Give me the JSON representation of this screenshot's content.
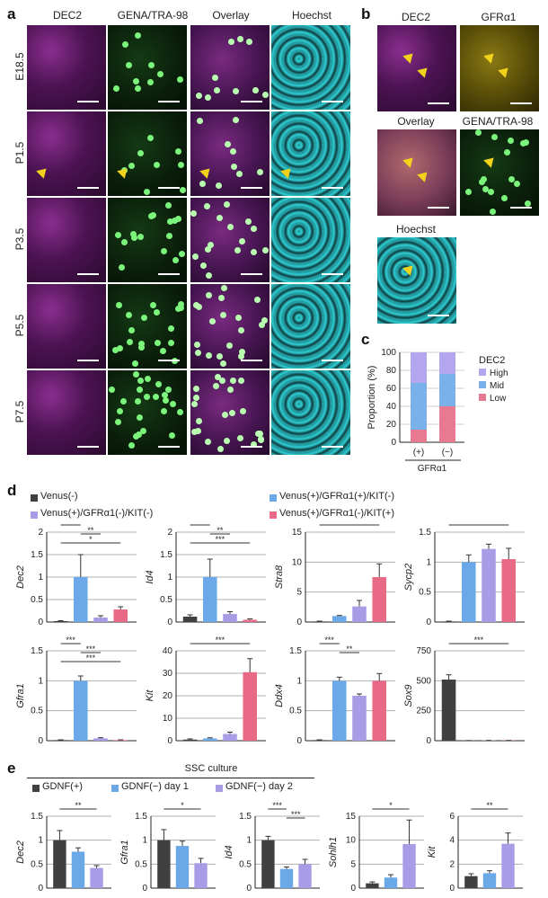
{
  "panel_labels": {
    "a": "a",
    "b": "b",
    "c": "c",
    "d": "d",
    "e": "e"
  },
  "panel_a": {
    "columns": [
      "DEC2",
      "GENA/TRA-98",
      "Overlay",
      "Hoechst"
    ],
    "rows": [
      "E18.5",
      "P1.5",
      "P3.5",
      "P5.5",
      "P7.5"
    ]
  },
  "panel_b": {
    "titles": [
      "DEC2",
      "GFRα1",
      "Overlay",
      "GENA/TRA-98",
      "Hoechst"
    ]
  },
  "colors": {
    "black": "#404040",
    "blue": "#6aa8e8",
    "lavender": "#a99ce6",
    "pink": "#e86a86",
    "high": "#b3a6ef",
    "mid": "#7ab1ea",
    "low": "#e77a91"
  },
  "chart_data": [
    {
      "id": "c",
      "type": "bar",
      "stacked": true,
      "ylabel": "Proportion (%)",
      "yticks": [
        "0",
        "20",
        "40",
        "60",
        "80",
        "100"
      ],
      "ylim": [
        0,
        100
      ],
      "categories": [
        "(+)",
        "(−)"
      ],
      "xgroup": "GFRα1",
      "legend_title": "DEC2",
      "series": [
        {
          "name": "Low",
          "values": [
            14,
            40
          ]
        },
        {
          "name": "Mid",
          "values": [
            52,
            36
          ]
        },
        {
          "name": "High",
          "values": [
            34,
            24
          ]
        }
      ]
    },
    {
      "id": "d",
      "type": "bar",
      "legend": [
        "Venus(-)",
        "Venus(+)/GFRα1(+)/KIT(-)",
        "Venus(+)/GFRα1(-)/KIT(-)",
        "Venus(+)/GFRα1(-)/KIT(+)"
      ],
      "subplots": [
        {
          "gene": "Dec2",
          "yticks": [
            "0",
            "0.5",
            "1",
            "1.5",
            "2"
          ],
          "ylim": [
            0,
            2
          ],
          "values": [
            0.02,
            1.0,
            0.1,
            0.28
          ],
          "errors": [
            0.01,
            0.5,
            0.04,
            0.06
          ],
          "sig": [
            "**",
            "**",
            "*"
          ]
        },
        {
          "gene": "Id4",
          "yticks": [
            "0",
            "0.5",
            "1",
            "1.5",
            "2"
          ],
          "ylim": [
            0,
            2
          ],
          "values": [
            0.12,
            1.0,
            0.18,
            0.05
          ],
          "errors": [
            0.04,
            0.4,
            0.05,
            0.02
          ],
          "sig": [
            "**",
            "**",
            "***"
          ]
        },
        {
          "gene": "Stra8",
          "yticks": [
            "0",
            "5",
            "10",
            "15"
          ],
          "ylim": [
            0,
            15
          ],
          "values": [
            0.1,
            1.0,
            2.6,
            7.5
          ],
          "errors": [
            0.05,
            0.1,
            1.0,
            2.2
          ],
          "sig": [
            "***"
          ]
        },
        {
          "gene": "Sycp2",
          "yticks": [
            "0",
            "0.5",
            "1",
            "1.5"
          ],
          "ylim": [
            0,
            1.5
          ],
          "values": [
            0.01,
            1.0,
            1.22,
            1.05
          ],
          "errors": [
            0.005,
            0.12,
            0.08,
            0.18
          ],
          "sig": [
            "***"
          ]
        },
        {
          "gene": "Gfra1",
          "yticks": [
            "0",
            "0.5",
            "1",
            "1.5"
          ],
          "ylim": [
            0,
            1.5
          ],
          "values": [
            0.01,
            1.0,
            0.04,
            0.01
          ],
          "errors": [
            0.005,
            0.08,
            0.01,
            0.005
          ],
          "sig": [
            "***",
            "***",
            "***"
          ]
        },
        {
          "gene": "Kit",
          "yticks": [
            "0",
            "10",
            "20",
            "30",
            "40"
          ],
          "ylim": [
            0,
            40
          ],
          "values": [
            0.5,
            1.0,
            3.0,
            30.5
          ],
          "errors": [
            0.3,
            0.3,
            0.8,
            6.0
          ],
          "sig": [
            "***"
          ]
        },
        {
          "gene": "Ddx4",
          "yticks": [
            "0",
            "0.5",
            "1",
            "1.5"
          ],
          "ylim": [
            0,
            1.5
          ],
          "values": [
            0.01,
            1.0,
            0.75,
            1.0
          ],
          "errors": [
            0.005,
            0.06,
            0.03,
            0.12
          ],
          "sig": [
            "***",
            "**"
          ]
        },
        {
          "gene": "Sox9",
          "yticks": [
            "0",
            "250",
            "500",
            "750"
          ],
          "ylim": [
            0,
            750
          ],
          "values": [
            510,
            1.0,
            2.0,
            2.0
          ],
          "errors": [
            40,
            0.5,
            0.5,
            0.5
          ],
          "sig": [
            "***"
          ]
        }
      ]
    },
    {
      "id": "e",
      "type": "bar",
      "title": "SSC culture",
      "legend": [
        "GDNF(+)",
        "GDNF(−) day 1",
        "GDNF(−) day 2"
      ],
      "subplots": [
        {
          "gene": "Dec2",
          "yticks": [
            "0",
            "0.5",
            "1",
            "1.5"
          ],
          "ylim": [
            0,
            1.5
          ],
          "values": [
            1.0,
            0.76,
            0.42
          ],
          "errors": [
            0.2,
            0.08,
            0.05
          ],
          "sig": [
            "**"
          ]
        },
        {
          "gene": "Gfra1",
          "yticks": [
            "0",
            "0.5",
            "1",
            "1.5"
          ],
          "ylim": [
            0,
            1.5
          ],
          "values": [
            1.0,
            0.88,
            0.52
          ],
          "errors": [
            0.22,
            0.1,
            0.1
          ],
          "sig": [
            "*"
          ]
        },
        {
          "gene": "Id4",
          "yticks": [
            "0",
            "0.5",
            "1",
            "1.5"
          ],
          "ylim": [
            0,
            1.5
          ],
          "values": [
            1.0,
            0.4,
            0.5
          ],
          "errors": [
            0.08,
            0.04,
            0.1
          ],
          "sig": [
            "***",
            "***"
          ]
        },
        {
          "gene": "Sohlh1",
          "yticks": [
            "0",
            "5",
            "10",
            "15"
          ],
          "ylim": [
            0,
            15
          ],
          "values": [
            1.0,
            2.2,
            9.2
          ],
          "errors": [
            0.3,
            0.6,
            5.0
          ],
          "sig": [
            "*"
          ]
        },
        {
          "gene": "Kit",
          "yticks": [
            "0",
            "2",
            "4",
            "6"
          ],
          "ylim": [
            0,
            6
          ],
          "values": [
            1.0,
            1.25,
            3.7
          ],
          "errors": [
            0.2,
            0.2,
            0.9
          ],
          "sig": [
            "**"
          ]
        }
      ]
    }
  ]
}
